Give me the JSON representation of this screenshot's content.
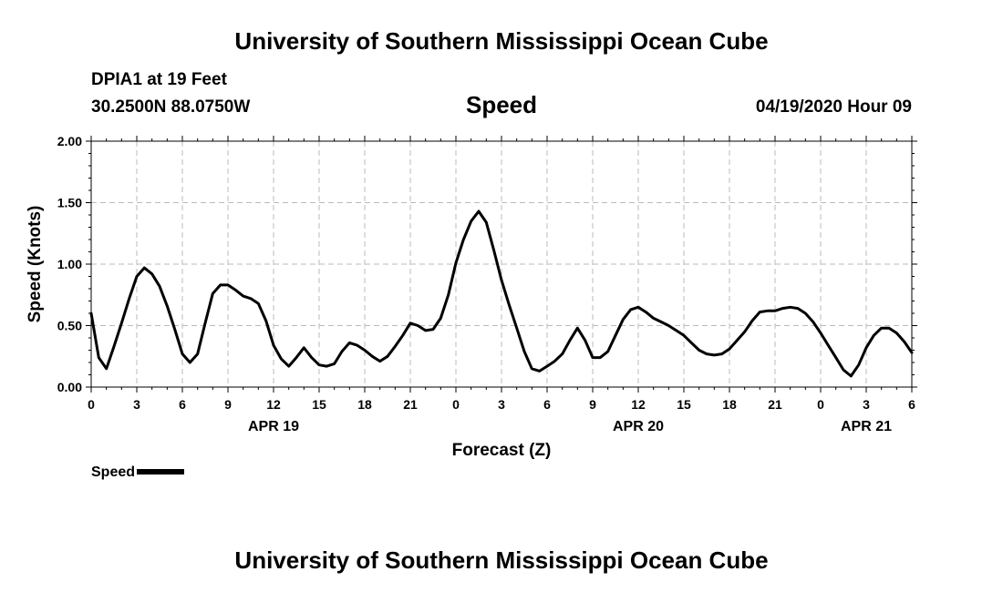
{
  "header": {
    "title": "University of Southern Mississippi Ocean Cube",
    "station": "DPIA1 at 19 Feet",
    "coords": "30.2500N 88.0750W",
    "plot_title": "Speed",
    "datetime": "04/19/2020 Hour 09"
  },
  "legend": {
    "label": "Speed"
  },
  "footer": {
    "title": "University of Southern Mississippi Ocean Cube"
  },
  "colors": {
    "line": "#000000",
    "grid": "#bbbbbb"
  },
  "chart_data": {
    "type": "line",
    "title": "Speed",
    "xlabel": "Forecast (Z)",
    "ylabel": "Speed (Knots)",
    "xlim": [
      0,
      54
    ],
    "ylim": [
      0,
      2.0
    ],
    "yticks": [
      0.0,
      0.5,
      1.0,
      1.5,
      2.0
    ],
    "ytick_labels": [
      "0.00",
      "0.50",
      "1.00",
      "1.50",
      "2.00"
    ],
    "xticks": [
      0,
      3,
      6,
      9,
      12,
      15,
      18,
      21,
      24,
      27,
      30,
      33,
      36,
      39,
      42,
      45,
      48,
      51,
      54
    ],
    "xtick_labels": [
      "0",
      "3",
      "6",
      "9",
      "12",
      "15",
      "18",
      "21",
      "0",
      "3",
      "6",
      "9",
      "12",
      "15",
      "18",
      "21",
      "0",
      "3",
      "6"
    ],
    "date_labels": [
      {
        "x": 12,
        "label": "APR 19"
      },
      {
        "x": 36,
        "label": "APR 20"
      },
      {
        "x": 51,
        "label": "APR 21"
      }
    ],
    "grid": true,
    "series": [
      {
        "name": "Speed",
        "x": [
          0,
          0.5,
          1,
          1.5,
          2,
          2.5,
          3,
          3.5,
          4,
          4.5,
          5,
          5.5,
          6,
          6.5,
          7,
          7.5,
          8,
          8.5,
          9,
          9.5,
          10,
          10.5,
          11,
          11.5,
          12,
          12.5,
          13,
          13.5,
          14,
          14.5,
          15,
          15.5,
          16,
          16.5,
          17,
          17.5,
          18,
          18.5,
          19,
          19.5,
          20,
          20.5,
          21,
          21.5,
          22,
          22.5,
          23,
          23.5,
          24,
          24.5,
          25,
          25.5,
          26,
          26.5,
          27,
          27.5,
          28,
          28.5,
          29,
          29.5,
          30,
          30.5,
          31,
          31.5,
          32,
          32.5,
          33,
          33.5,
          34,
          34.5,
          35,
          35.5,
          36,
          36.5,
          37,
          37.5,
          38,
          38.5,
          39,
          39.5,
          40,
          40.5,
          41,
          41.5,
          42,
          42.5,
          43,
          43.5,
          44,
          44.5,
          45,
          45.5,
          46,
          46.5,
          47,
          47.5,
          48,
          48.5,
          49,
          49.5,
          50,
          50.5,
          51,
          51.5,
          52,
          52.5,
          53,
          53.5,
          54
        ],
        "values": [
          0.6,
          0.24,
          0.15,
          0.33,
          0.52,
          0.72,
          0.9,
          0.97,
          0.92,
          0.82,
          0.66,
          0.47,
          0.27,
          0.2,
          0.27,
          0.52,
          0.76,
          0.83,
          0.83,
          0.79,
          0.74,
          0.72,
          0.68,
          0.54,
          0.34,
          0.23,
          0.17,
          0.24,
          0.32,
          0.24,
          0.18,
          0.17,
          0.19,
          0.29,
          0.36,
          0.34,
          0.3,
          0.25,
          0.21,
          0.25,
          0.33,
          0.42,
          0.52,
          0.5,
          0.46,
          0.47,
          0.56,
          0.75,
          1.01,
          1.2,
          1.35,
          1.43,
          1.34,
          1.11,
          0.87,
          0.67,
          0.48,
          0.29,
          0.15,
          0.13,
          0.17,
          0.21,
          0.27,
          0.38,
          0.48,
          0.38,
          0.24,
          0.24,
          0.29,
          0.42,
          0.55,
          0.63,
          0.65,
          0.61,
          0.56,
          0.53,
          0.5,
          0.46,
          0.42,
          0.36,
          0.3,
          0.27,
          0.26,
          0.27,
          0.31,
          0.38,
          0.45,
          0.54,
          0.61,
          0.62,
          0.62,
          0.64,
          0.65,
          0.64,
          0.6,
          0.53,
          0.44,
          0.34,
          0.24,
          0.14,
          0.09,
          0.18,
          0.32,
          0.42,
          0.48,
          0.48,
          0.44,
          0.37,
          0.28
        ]
      }
    ]
  }
}
